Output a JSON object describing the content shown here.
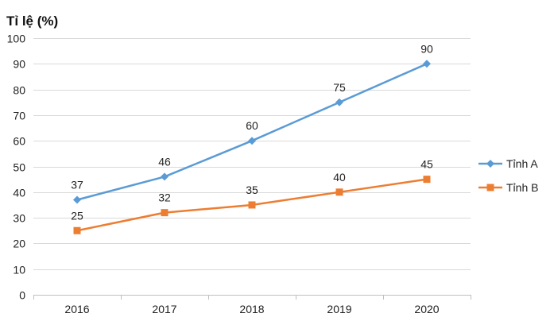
{
  "chart_data": {
    "type": "line",
    "ylabel": "Tỉ lệ (%)",
    "xlabel": "",
    "categories": [
      "2016",
      "2017",
      "2018",
      "2019",
      "2020"
    ],
    "ylim": [
      0,
      100
    ],
    "yticks": [
      0,
      10,
      20,
      30,
      40,
      50,
      60,
      70,
      80,
      90,
      100
    ],
    "grid": "horizontal",
    "legend": "right",
    "series": [
      {
        "name": "Tỉnh A",
        "values": [
          37,
          46,
          60,
          75,
          90
        ],
        "color": "#5b9bd5",
        "marker": "diamond"
      },
      {
        "name": "Tỉnh B",
        "values": [
          25,
          32,
          35,
          40,
          45
        ],
        "color": "#ed7d31",
        "marker": "square"
      }
    ]
  }
}
